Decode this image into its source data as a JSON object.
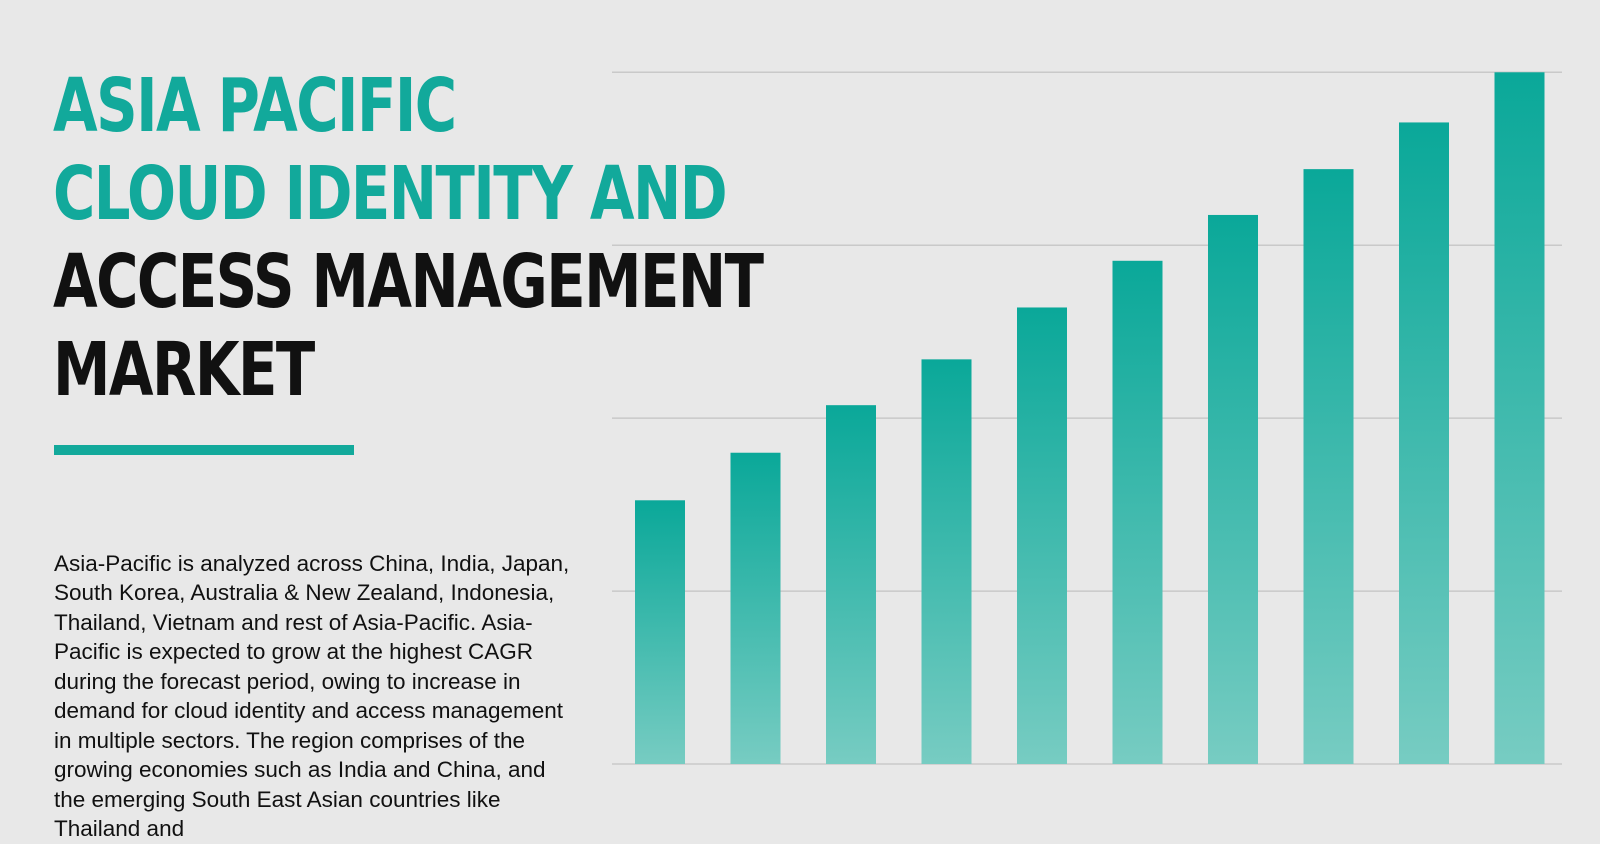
{
  "title": {
    "lines": [
      {
        "text": "ASIA PACIFIC",
        "color": "#12a99b"
      },
      {
        "text": "CLOUD IDENTITY AND",
        "color": "#12a99b"
      },
      {
        "text": "ACCESS MANAGEMENT",
        "color": "#111111"
      },
      {
        "text": "MARKET",
        "color": "#111111"
      }
    ]
  },
  "description": "Asia-Pacific is analyzed across China, India, Japan, South Korea, Australia & New Zealand, Indonesia, Thailand, Vietnam and rest of Asia-Pacific. Asia-Pacific is expected to grow at the highest CAGR during the forecast period, owing to increase in demand for cloud identity and access management in multiple sectors. The region comprises of the growing economies such as India and China, and the emerging South East Asian countries like Thailand and",
  "colors": {
    "accent": "#12a99b",
    "bar_top": "#0aa899",
    "bar_bottom": "#77ccc2",
    "grid": "#c9c9c9",
    "background": "#e8e8e8"
  },
  "chart_data": {
    "type": "bar",
    "values": [
      3.05,
      3.6,
      4.15,
      4.68,
      5.28,
      5.82,
      6.35,
      6.88,
      7.42,
      8.0
    ],
    "ylim": [
      0,
      8.2
    ],
    "gridlines": [
      0,
      2,
      4,
      6,
      8
    ],
    "grid": true
  }
}
